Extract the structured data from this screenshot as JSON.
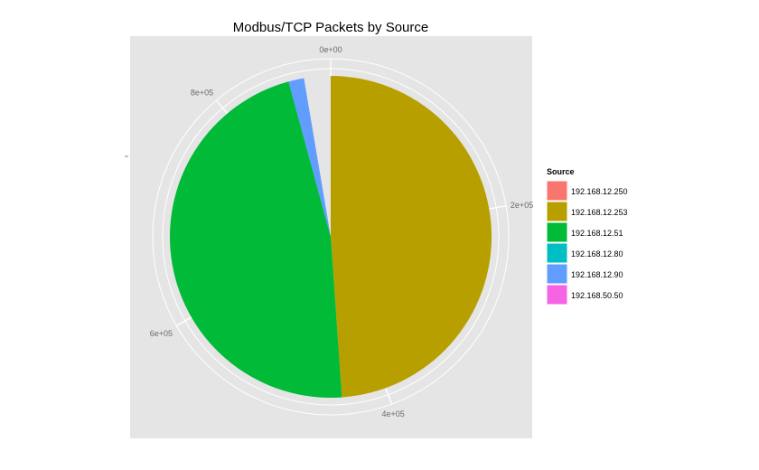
{
  "chart_data": {
    "type": "pie",
    "title": "Modbus/TCP Packets by Source",
    "legend_title": "Source",
    "legend_position": "right",
    "grid": true,
    "total_max": 900000,
    "ticks": [
      {
        "value": 0,
        "label": "0e+00"
      },
      {
        "value": 200000,
        "label": "2e+05"
      },
      {
        "value": 400000,
        "label": "4e+05"
      },
      {
        "value": 600000,
        "label": "6e+05"
      },
      {
        "value": 800000,
        "label": "8e+05"
      }
    ],
    "slices": [
      {
        "label": "192.168.12.250",
        "value": 0,
        "color": "#F8766D"
      },
      {
        "label": "192.168.12.253",
        "value": 440000,
        "color": "#B79F00"
      },
      {
        "label": "192.168.12.51",
        "value": 422000,
        "color": "#00BA38"
      },
      {
        "label": "192.168.12.80",
        "value": 0,
        "color": "#00BFC4"
      },
      {
        "label": "192.168.12.90",
        "value": 14000,
        "color": "#619CFF"
      },
      {
        "label": "192.168.50.50",
        "value": 0,
        "color": "#F564E3"
      }
    ]
  }
}
